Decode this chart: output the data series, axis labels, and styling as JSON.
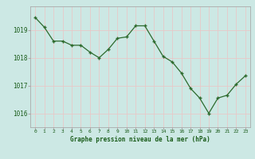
{
  "x": [
    0,
    1,
    2,
    3,
    4,
    5,
    6,
    7,
    8,
    9,
    10,
    11,
    12,
    13,
    14,
    15,
    16,
    17,
    18,
    19,
    20,
    21,
    22,
    23
  ],
  "y": [
    1019.45,
    1019.1,
    1018.6,
    1018.6,
    1018.45,
    1018.45,
    1018.2,
    1018.0,
    1018.3,
    1018.7,
    1018.75,
    1019.15,
    1019.15,
    1018.6,
    1018.05,
    1017.85,
    1017.45,
    1016.9,
    1016.55,
    1016.0,
    1016.55,
    1016.65,
    1017.05,
    1017.35
  ],
  "line_color": "#2d6a2d",
  "marker": "+",
  "marker_color": "#2d6a2d",
  "bg_color": "#cce8e4",
  "plot_bg_color": "#cce8e4",
  "grid_color": "#e8c8c8",
  "axis_label_color": "#1a5c1a",
  "tick_label_color": "#1a5c1a",
  "spine_color": "#aaaaaa",
  "xlabel": "Graphe pression niveau de la mer (hPa)",
  "ylim": [
    1015.5,
    1019.85
  ],
  "yticks": [
    1016,
    1017,
    1018,
    1019
  ],
  "xticks": [
    0,
    1,
    2,
    3,
    4,
    5,
    6,
    7,
    8,
    9,
    10,
    11,
    12,
    13,
    14,
    15,
    16,
    17,
    18,
    19,
    20,
    21,
    22,
    23
  ]
}
